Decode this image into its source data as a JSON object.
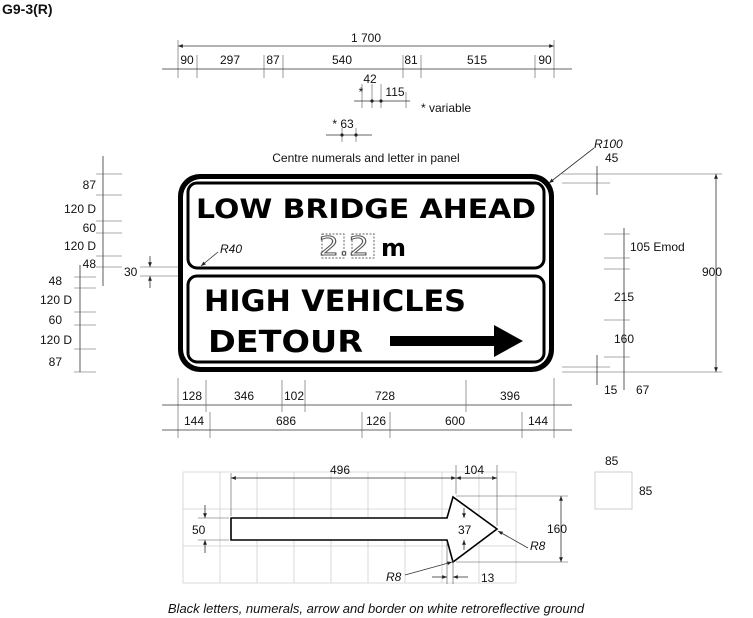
{
  "sign_code": "G9-3(R)",
  "sign": {
    "line1": "LOW BRIDGE AHEAD",
    "numeral_example": "2.2",
    "unit": "m",
    "line2": "HIGH VEHICLES",
    "line3": "DETOUR"
  },
  "notes": {
    "centre": "Centre numerals and letter in panel",
    "variable": "* variable",
    "footer": "Black letters, numerals, arrow and border on white retroreflective ground"
  },
  "dims_top": {
    "total": "1 700",
    "row": [
      "90",
      "297",
      "87",
      "540",
      "81",
      "515",
      "90"
    ],
    "d42": "42",
    "star": "*",
    "d115": "115",
    "star63": "* 63"
  },
  "dims_left": [
    "87",
    "120 D",
    "60",
    "120 D",
    "48",
    "48",
    "120 D",
    "60",
    "120 D",
    "87"
  ],
  "dim_30": "30",
  "radii": {
    "r100": "R100",
    "r40": "R40",
    "r8a": "R8",
    "r8b": "R8"
  },
  "dims_right": {
    "d45": "45",
    "d105": "105 Emod",
    "d215": "215",
    "d160": "160",
    "d15": "15",
    "d67": "67",
    "d900": "900"
  },
  "dims_bottom": {
    "row1": [
      "128",
      "346",
      "102",
      "728",
      "396"
    ],
    "row2": [
      "144",
      "686",
      "126",
      "600",
      "144"
    ]
  },
  "arrow_detail": {
    "d496": "496",
    "d104": "104",
    "d50": "50",
    "d37": "37",
    "d160": "160",
    "d13": "13"
  },
  "grid_square": {
    "w": "85",
    "h": "85"
  }
}
